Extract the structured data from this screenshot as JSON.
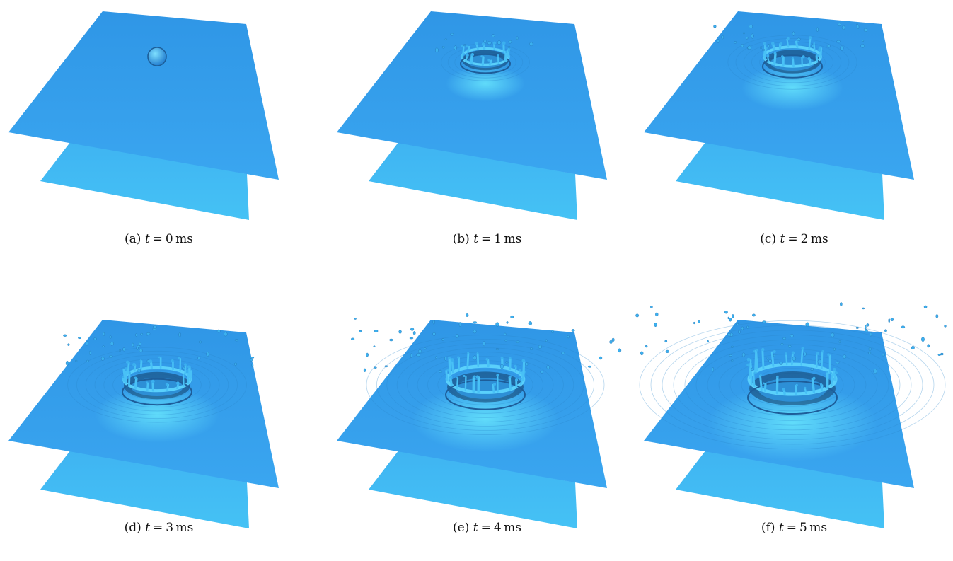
{
  "panels": [
    {
      "letter": "(a)",
      "var": "t",
      "eq": "=",
      "value": "0",
      "unit": "ms",
      "stage": 0
    },
    {
      "letter": "(b)",
      "var": "t",
      "eq": "=",
      "value": "1",
      "unit": "ms",
      "stage": 1
    },
    {
      "letter": "(c)",
      "var": "t",
      "eq": "=",
      "value": "2",
      "unit": "ms",
      "stage": 2
    },
    {
      "letter": "(d)",
      "var": "t",
      "eq": "=",
      "value": "3",
      "unit": "ms",
      "stage": 3
    },
    {
      "letter": "(e)",
      "var": "t",
      "eq": "=",
      "value": "4",
      "unit": "ms",
      "stage": 4
    },
    {
      "letter": "(f)",
      "var": "t",
      "eq": "=",
      "value": "5",
      "unit": "ms",
      "stage": 5
    }
  ],
  "colors": {
    "upper_sheet": "#3aa6f0",
    "lower_sheet": "#45c2f5",
    "droplet": "#3bb0ef",
    "droplet_edge": "#1d5f9a",
    "crown_dark": "#123c66"
  }
}
